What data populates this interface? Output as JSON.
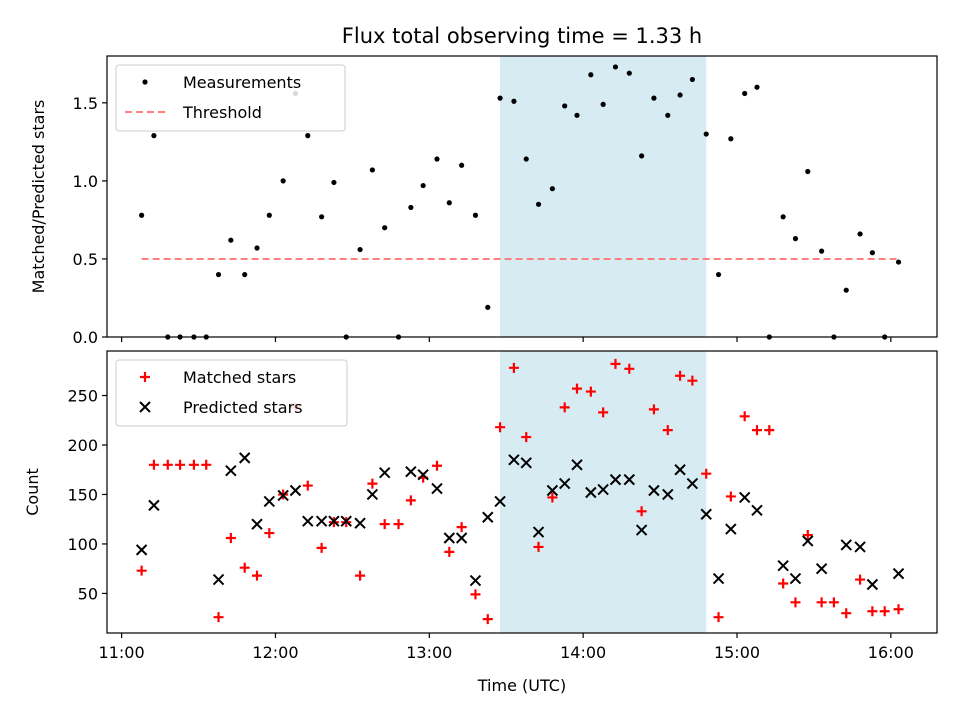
{
  "title": "Flux total observing time = 1.33 h",
  "colors": {
    "measurements": "#000000",
    "threshold": "#ff7f7f",
    "matched": "#ff0000",
    "predicted": "#000000",
    "shade": "#add8e6"
  },
  "chart_data": [
    {
      "type": "scatter",
      "ylabel": "Matched/Predicted stars",
      "xlim": [
        10.905,
        16.3
      ],
      "ylim": [
        0,
        1.8
      ],
      "yticks": [
        0.0,
        0.5,
        1.0,
        1.5
      ],
      "ytick_labels": [
        "0.0",
        "0.5",
        "1.0",
        "1.5"
      ],
      "shaded_interval": [
        13.46,
        14.8
      ],
      "threshold": {
        "name": "Threshold",
        "x": [
          11.13,
          16.05
        ],
        "y": 0.5
      },
      "legend": {
        "placement": "upper-left",
        "entries": [
          "Measurements",
          "Threshold"
        ]
      },
      "series": [
        {
          "name": "Measurements",
          "x": [
            11.13,
            11.21,
            11.3,
            11.38,
            11.47,
            11.55,
            11.63,
            11.71,
            11.8,
            11.88,
            11.96,
            12.05,
            12.13,
            12.21,
            12.3,
            12.38,
            12.46,
            12.55,
            12.63,
            12.71,
            12.8,
            12.88,
            12.96,
            13.05,
            13.13,
            13.21,
            13.3,
            13.38,
            13.46,
            13.55,
            13.63,
            13.71,
            13.8,
            13.88,
            13.96,
            14.05,
            14.13,
            14.21,
            14.3,
            14.38,
            14.46,
            14.55,
            14.63,
            14.71,
            14.8,
            14.88,
            14.96,
            15.05,
            15.13,
            15.21,
            15.3,
            15.38,
            15.46,
            15.55,
            15.63,
            15.71,
            15.8,
            15.88,
            15.96,
            16.05
          ],
          "y": [
            0.78,
            1.29,
            0.0,
            0.0,
            0.0,
            0.0,
            0.4,
            0.62,
            0.4,
            0.57,
            0.78,
            1.0,
            1.56,
            1.29,
            0.77,
            0.99,
            0.0,
            0.56,
            1.07,
            0.7,
            0.0,
            0.83,
            0.97,
            1.14,
            0.86,
            1.1,
            0.78,
            0.19,
            1.53,
            1.51,
            1.14,
            0.85,
            0.95,
            1.48,
            1.42,
            1.68,
            1.49,
            1.73,
            1.69,
            1.16,
            1.53,
            1.42,
            1.55,
            1.65,
            1.3,
            0.4,
            1.27,
            1.56,
            1.6,
            0.0,
            0.77,
            0.63,
            1.06,
            0.55,
            0.0,
            0.3,
            0.66,
            0.54,
            0.0,
            0.48
          ]
        }
      ]
    },
    {
      "type": "scatter",
      "xlabel": "Time (UTC)",
      "ylabel": "Count",
      "xlim": [
        10.905,
        16.3
      ],
      "ylim": [
        10,
        295
      ],
      "yticks": [
        50,
        100,
        150,
        200,
        250
      ],
      "ytick_labels": [
        "50",
        "100",
        "150",
        "200",
        "250"
      ],
      "xticks": [
        11,
        12,
        13,
        14,
        15,
        16
      ],
      "xtick_labels": [
        "11:00",
        "12:00",
        "13:00",
        "14:00",
        "15:00",
        "16:00"
      ],
      "shaded_interval": [
        13.46,
        14.8
      ],
      "legend": {
        "placement": "upper-left",
        "entries": [
          "Matched stars",
          "Predicted stars"
        ]
      },
      "series": [
        {
          "name": "Matched stars",
          "x": [
            11.13,
            11.21,
            11.3,
            11.38,
            11.47,
            11.55,
            11.63,
            11.71,
            11.8,
            11.88,
            11.96,
            12.05,
            12.13,
            12.21,
            12.3,
            12.38,
            12.46,
            12.55,
            12.63,
            12.71,
            12.8,
            12.88,
            12.96,
            13.05,
            13.13,
            13.21,
            13.3,
            13.38,
            13.46,
            13.55,
            13.63,
            13.71,
            13.8,
            13.88,
            13.96,
            14.05,
            14.13,
            14.21,
            14.3,
            14.38,
            14.46,
            14.55,
            14.63,
            14.71,
            14.8,
            14.88,
            14.96,
            15.05,
            15.13,
            15.21,
            15.3,
            15.38,
            15.46,
            15.55,
            15.63,
            15.71,
            15.8,
            15.88,
            15.96,
            16.05
          ],
          "y": [
            73,
            180,
            180,
            180,
            180,
            180,
            26,
            106,
            76,
            68,
            111,
            150,
            238,
            159,
            96,
            122,
            122,
            68,
            161,
            120,
            120,
            144,
            167,
            179,
            92,
            117,
            49,
            24,
            218,
            278,
            208,
            97,
            147,
            238,
            257,
            254,
            233,
            282,
            277,
            133,
            236,
            215,
            270,
            265,
            171,
            26,
            148,
            229,
            215,
            215,
            60,
            41,
            109,
            41,
            41,
            30,
            64,
            32,
            32,
            34
          ]
        },
        {
          "name": "Predicted stars",
          "x": [
            11.13,
            11.21,
            11.63,
            11.71,
            11.8,
            11.88,
            11.96,
            12.05,
            12.13,
            12.21,
            12.3,
            12.38,
            12.46,
            12.55,
            12.63,
            12.71,
            12.88,
            12.96,
            13.05,
            13.13,
            13.21,
            13.3,
            13.38,
            13.46,
            13.55,
            13.63,
            13.71,
            13.8,
            13.88,
            13.96,
            14.05,
            14.13,
            14.21,
            14.3,
            14.38,
            14.46,
            14.55,
            14.63,
            14.71,
            14.8,
            14.88,
            14.96,
            15.05,
            15.13,
            15.3,
            15.38,
            15.46,
            15.55,
            15.71,
            15.8,
            15.88,
            16.05
          ],
          "y": [
            94,
            139,
            64,
            174,
            187,
            120,
            143,
            149,
            154,
            123,
            123,
            123,
            123,
            121,
            150,
            172,
            173,
            170,
            156,
            106,
            106,
            63,
            127,
            143,
            185,
            182,
            112,
            154,
            161,
            180,
            152,
            155,
            165,
            165,
            114,
            154,
            150,
            175,
            161,
            130,
            65,
            115,
            147,
            134,
            78,
            65,
            103,
            75,
            99,
            97,
            59,
            70
          ]
        }
      ]
    }
  ]
}
